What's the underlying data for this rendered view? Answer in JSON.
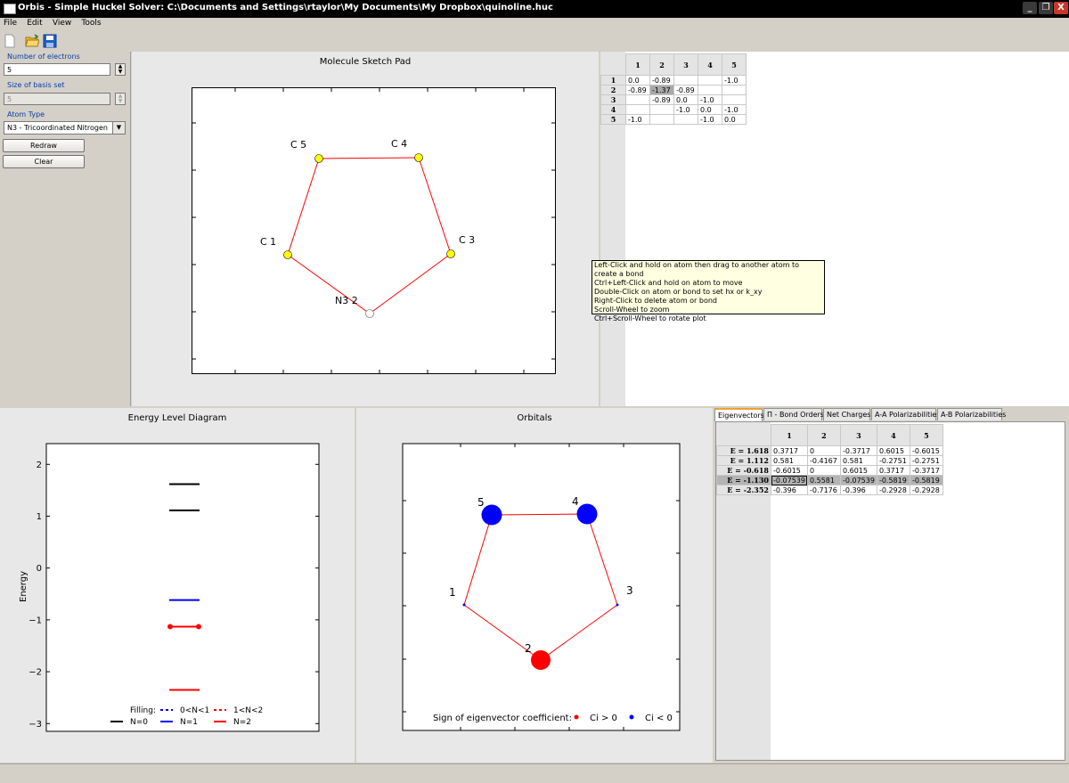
{
  "window": {
    "title": "Orbis - Simple Huckel Solver: C:\\Documents and Settings\\rtaylor\\My Documents\\My Dropbox\\quinoline.huc",
    "minimize": "_",
    "restore": "❐",
    "close": "X"
  },
  "menu": [
    "File",
    "Edit",
    "View",
    "Tools"
  ],
  "toolbar": {
    "new_icon": "new-file-icon",
    "open_icon": "open-folder-icon",
    "save_icon": "save-disk-icon"
  },
  "left_panel": {
    "electrons_label": "Number of electrons",
    "electrons_value": "5",
    "basis_label": "Size of basis set",
    "basis_value": "5",
    "atom_type_label": "Atom Type",
    "atom_type_value": "N3 - Tricoordinated Nitrogen",
    "redraw_label": "Redraw",
    "clear_label": "Clear"
  },
  "sketch_pad": {
    "title": "Molecule Sketch Pad",
    "atoms": [
      {
        "label": "C 5",
        "color": "#ffff00"
      },
      {
        "label": "C 4",
        "color": "#ffff00"
      },
      {
        "label": "C 1",
        "color": "#ffff00"
      },
      {
        "label": "C 3",
        "color": "#ffff00"
      },
      {
        "label": "N3 2",
        "color": "#ffffff"
      }
    ],
    "bond_color": "#ff0000"
  },
  "huckel_matrix": {
    "col_headers": [
      "1",
      "2",
      "3",
      "4",
      "5"
    ],
    "rows": [
      {
        "head": "1",
        "cells": [
          "0.0",
          "-0.89",
          "",
          "",
          "-1.0"
        ]
      },
      {
        "head": "2",
        "cells": [
          "-0.89",
          "-1.37",
          "-0.89",
          "",
          ""
        ]
      },
      {
        "head": "3",
        "cells": [
          "",
          "-0.89",
          "0.0",
          "-1.0",
          ""
        ]
      },
      {
        "head": "4",
        "cells": [
          "",
          "",
          "-1.0",
          "0.0",
          "-1.0"
        ]
      },
      {
        "head": "5",
        "cells": [
          "-1.0",
          "",
          "",
          "-1.0",
          "0.0"
        ]
      }
    ],
    "selected_cell": "2,2"
  },
  "tooltip": {
    "lines": [
      "Left-Click and hold on atom then drag to another atom to create a bond",
      "Ctrl+Left-Click and hold on atom to move",
      "Double-Click on atom or bond to set hx or k_xy",
      "Right-Click to delete atom or bond",
      "Scroll-Wheel to zoom",
      "Ctrl+Scroll-Wheel to rotate plot"
    ]
  },
  "energy_diagram": {
    "title": "Energy Level Diagram",
    "ylabel": "Energy",
    "yticks": [
      "2",
      "1",
      "0",
      "−1",
      "−2",
      "−3"
    ],
    "legend": {
      "filling_label": "Filling:",
      "n0": "N=0",
      "n1": "N=1",
      "n2": "N=2",
      "partial_lt1": "0<N<1",
      "partial_gt1": "1<N<2"
    }
  },
  "chart_data": {
    "type": "scatter",
    "title": "Energy Level Diagram",
    "ylabel": "Energy",
    "ylim": [
      -3.15,
      2.4
    ],
    "levels": [
      {
        "energy": 1.618,
        "filling": "N=0",
        "color": "#000000"
      },
      {
        "energy": 1.112,
        "filling": "N=0",
        "color": "#000000"
      },
      {
        "energy": -0.618,
        "filling": "N=1",
        "color": "#0000ff"
      },
      {
        "energy": -1.13,
        "filling": "N=2",
        "color": "#ff0000"
      },
      {
        "energy": -2.352,
        "filling": "N=2",
        "color": "#ff0000"
      }
    ]
  },
  "orbitals": {
    "title": "Orbitals",
    "atom_labels": [
      "5",
      "4",
      "1",
      "3",
      "2"
    ],
    "legend_label": "Sign of eigenvector coefficient:",
    "positive_label": "Ci > 0",
    "negative_label": "Ci < 0",
    "positive_color": "#ff0000",
    "negative_color": "#0000ff"
  },
  "tabs": [
    "Eigenvectors",
    "Π - Bond Orders",
    "Net Charges",
    "A-A Polarizabilities",
    "A-B Polarizabilities"
  ],
  "eigen_table": {
    "col_headers": [
      "1",
      "2",
      "3",
      "4",
      "5"
    ],
    "rows": [
      {
        "head": "E = 1.618",
        "cells": [
          "0.3717",
          "0",
          "-0.3717",
          "0.6015",
          "-0.6015"
        ]
      },
      {
        "head": "E = 1.112",
        "cells": [
          "0.581",
          "-0.4167",
          "0.581",
          "-0.2751",
          "-0.2751"
        ]
      },
      {
        "head": "E = -0.618",
        "cells": [
          "-0.6015",
          "0",
          "0.6015",
          "0.3717",
          "-0.3717"
        ]
      },
      {
        "head": "E = -1.130",
        "cells": [
          "-0.07539",
          "0.5581",
          "-0.07539",
          "-0.5819",
          "-0.5819"
        ]
      },
      {
        "head": "E = -2.352",
        "cells": [
          "-0.396",
          "-0.7176",
          "-0.396",
          "-0.2928",
          "-0.2928"
        ]
      }
    ]
  }
}
